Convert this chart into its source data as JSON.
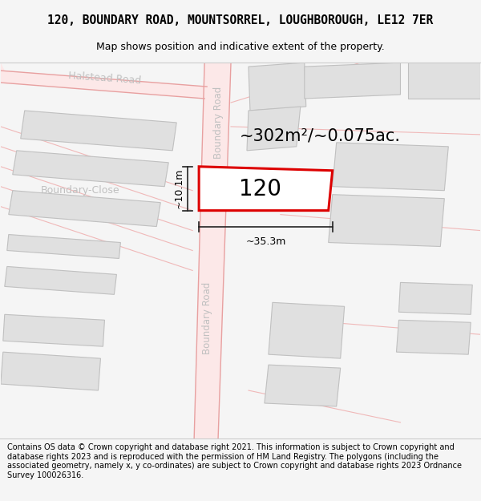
{
  "title_line1": "120, BOUNDARY ROAD, MOUNTSORREL, LOUGHBOROUGH, LE12 7ER",
  "title_line2": "Map shows position and indicative extent of the property.",
  "footer_text": "Contains OS data © Crown copyright and database right 2021. This information is subject to Crown copyright and database rights 2023 and is reproduced with the permission of HM Land Registry. The polygons (including the associated geometry, namely x, y co-ordinates) are subject to Crown copyright and database rights 2023 Ordnance Survey 100026316.",
  "area_text": "~302m²/~0.075ac.",
  "label_120": "120",
  "dim_width": "~35.3m",
  "dim_height": "~10.1m",
  "background_color": "#f5f5f5",
  "map_background": "#ffffff",
  "road_fill_color": "#fce8e8",
  "road_line_color": "#e8a0a0",
  "road_line_thin": "#f0b8b8",
  "building_fill": "#e0e0e0",
  "building_edge": "#c0c0c0",
  "highlight_fill": "#ffffff",
  "highlight_edge": "#dd0000",
  "road_label_color": "#c0c0c0",
  "dim_color": "#222222",
  "title_fontsize": 10.5,
  "subtitle_fontsize": 9,
  "footer_fontsize": 7,
  "area_fontsize": 15,
  "label_fontsize": 20,
  "road_label_fontsize": 8.5
}
